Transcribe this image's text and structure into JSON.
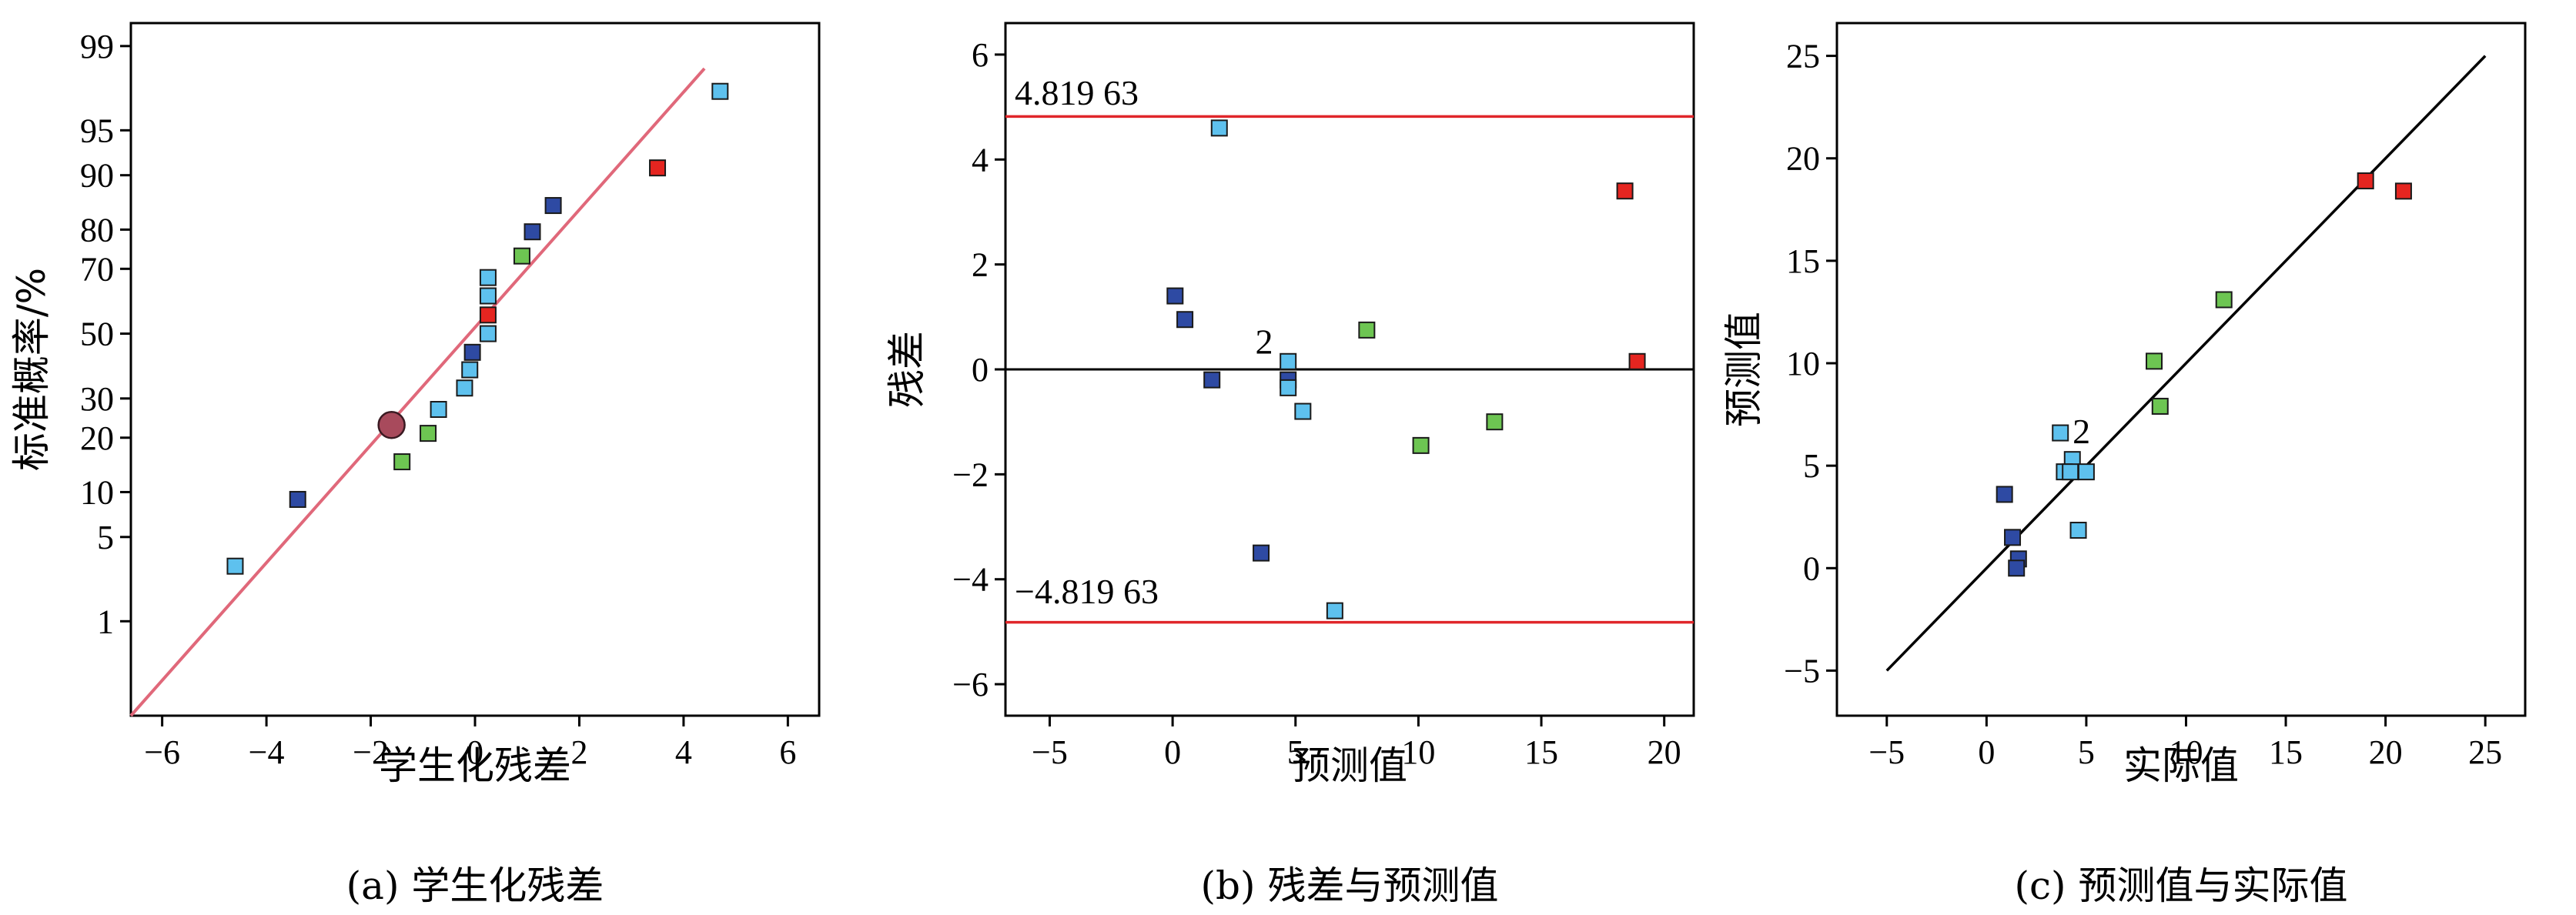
{
  "colors": {
    "dark_blue": "#2e4aa3",
    "light_blue": "#5ec1ee",
    "green": "#6dc552",
    "red": "#e52520",
    "ref_line_a": "#e0687a",
    "highlight": "#a84a5c",
    "limit_line": "#e0262a",
    "fit_line": "#000000"
  },
  "chart_data": [
    {
      "type": "scatter",
      "panel": "a",
      "caption": "(a) 学生化残差",
      "xlabel": "学生化残差",
      "ylabel": "标准概率/%",
      "xlim": [
        -6.6,
        6.6
      ],
      "xticks": [
        "−6",
        "−4",
        "−2",
        "0",
        "2",
        "4",
        "6"
      ],
      "xtick_values": [
        -6,
        -4,
        -2,
        0,
        2,
        4,
        6
      ],
      "ylim_percent": [
        0.1,
        99.4
      ],
      "y_scale": "normal probability",
      "yticks": [
        "1",
        "5",
        "10",
        "20",
        "30",
        "50",
        "70",
        "80",
        "90",
        "95",
        "99"
      ],
      "ytick_values": [
        1,
        5,
        10,
        20,
        30,
        50,
        70,
        80,
        90,
        95,
        99
      ],
      "reference_line": {
        "x": [
          -6.6,
          4.4
        ],
        "y": [
          0.1,
          98.4
        ]
      },
      "points": [
        {
          "x": -4.6,
          "y": 3.0,
          "color": "light_blue"
        },
        {
          "x": -3.4,
          "y": 9.0,
          "color": "dark_blue"
        },
        {
          "x": -1.4,
          "y": 15.0,
          "color": "green"
        },
        {
          "x": -0.9,
          "y": 21.0,
          "color": "green"
        },
        {
          "x": -0.7,
          "y": 27.0,
          "color": "light_blue"
        },
        {
          "x": -0.2,
          "y": 33.0,
          "color": "light_blue"
        },
        {
          "x": -0.1,
          "y": 38.5,
          "color": "light_blue"
        },
        {
          "x": -0.05,
          "y": 44.0,
          "color": "dark_blue"
        },
        {
          "x": 0.25,
          "y": 50.0,
          "color": "light_blue"
        },
        {
          "x": 0.25,
          "y": 56.0,
          "color": "red"
        },
        {
          "x": 0.25,
          "y": 62.0,
          "color": "light_blue"
        },
        {
          "x": 0.25,
          "y": 67.5,
          "color": "light_blue"
        },
        {
          "x": 0.9,
          "y": 73.5,
          "color": "green"
        },
        {
          "x": 1.1,
          "y": 79.5,
          "color": "dark_blue"
        },
        {
          "x": 1.5,
          "y": 85.0,
          "color": "dark_blue"
        },
        {
          "x": 3.5,
          "y": 91.0,
          "color": "red"
        },
        {
          "x": 4.7,
          "y": 97.5,
          "color": "light_blue"
        }
      ],
      "highlight_point": {
        "x": -1.6,
        "y": 23.0
      }
    },
    {
      "type": "scatter",
      "panel": "b",
      "caption": "(b) 残差与预测值",
      "xlabel": "预测值",
      "ylabel": "残差",
      "xlim": [
        -6.8,
        21.2
      ],
      "ylim": [
        -6.6,
        6.6
      ],
      "xticks": [
        "−5",
        "0",
        "5",
        "10",
        "15",
        "20"
      ],
      "xtick_values": [
        -5,
        0,
        5,
        10,
        15,
        20
      ],
      "yticks": [
        "−6",
        "−4",
        "−2",
        "0",
        "2",
        "4",
        "6"
      ],
      "ytick_values": [
        -6,
        -4,
        -2,
        0,
        2,
        4,
        6
      ],
      "limit_upper": 4.81963,
      "limit_lower": -4.81963,
      "limit_upper_label": "4.819 63",
      "limit_lower_label": "−4.819 63",
      "zero_line": 0,
      "annotation_label": "2",
      "annotation_at": {
        "x": 3.8,
        "y": 0.3
      },
      "points": [
        {
          "x": 1.9,
          "y": 4.6,
          "color": "light_blue"
        },
        {
          "x": 0.1,
          "y": 1.4,
          "color": "dark_blue"
        },
        {
          "x": 0.5,
          "y": 0.95,
          "color": "dark_blue"
        },
        {
          "x": 1.6,
          "y": -0.2,
          "color": "dark_blue"
        },
        {
          "x": 4.7,
          "y": 0.15,
          "color": "light_blue"
        },
        {
          "x": 4.7,
          "y": -0.2,
          "color": "dark_blue"
        },
        {
          "x": 4.7,
          "y": -0.35,
          "color": "light_blue"
        },
        {
          "x": 5.3,
          "y": -0.8,
          "color": "light_blue"
        },
        {
          "x": 7.9,
          "y": 0.75,
          "color": "green"
        },
        {
          "x": 10.1,
          "y": -1.45,
          "color": "green"
        },
        {
          "x": 13.1,
          "y": -1.0,
          "color": "green"
        },
        {
          "x": 18.4,
          "y": 3.4,
          "color": "red"
        },
        {
          "x": 18.9,
          "y": 0.15,
          "color": "red"
        },
        {
          "x": 3.6,
          "y": -3.5,
          "color": "dark_blue"
        },
        {
          "x": 6.6,
          "y": -4.6,
          "color": "light_blue"
        }
      ]
    },
    {
      "type": "scatter",
      "panel": "c",
      "caption": "(c) 预测值与实际值",
      "xlabel": "实际值",
      "ylabel": "预测值",
      "xlim": [
        -7.5,
        27.0
      ],
      "ylim": [
        -7.2,
        26.6
      ],
      "xticks": [
        "−5",
        "0",
        "5",
        "10",
        "15",
        "20",
        "25"
      ],
      "xtick_values": [
        -5,
        0,
        5,
        10,
        15,
        20,
        25
      ],
      "yticks": [
        "−5",
        "0",
        "5",
        "10",
        "15",
        "20",
        "25"
      ],
      "ytick_values": [
        -5,
        0,
        5,
        10,
        15,
        20,
        25
      ],
      "fit_line": {
        "x": [
          -5,
          25
        ],
        "y": [
          -5,
          25
        ]
      },
      "annotation_label": "2",
      "annotation_at": {
        "x": 4.7,
        "y": 6.1
      },
      "points": [
        {
          "x": 0.9,
          "y": 3.6,
          "color": "dark_blue"
        },
        {
          "x": 1.3,
          "y": 1.5,
          "color": "dark_blue"
        },
        {
          "x": 1.6,
          "y": 0.45,
          "color": "dark_blue"
        },
        {
          "x": 1.5,
          "y": 0.0,
          "color": "dark_blue"
        },
        {
          "x": 3.7,
          "y": 6.6,
          "color": "light_blue"
        },
        {
          "x": 4.3,
          "y": 5.3,
          "color": "light_blue"
        },
        {
          "x": 3.9,
          "y": 4.7,
          "color": "light_blue"
        },
        {
          "x": 4.2,
          "y": 4.7,
          "color": "light_blue"
        },
        {
          "x": 5.0,
          "y": 4.7,
          "color": "light_blue"
        },
        {
          "x": 4.6,
          "y": 1.85,
          "color": "light_blue"
        },
        {
          "x": 8.4,
          "y": 10.1,
          "color": "green"
        },
        {
          "x": 8.7,
          "y": 7.9,
          "color": "green"
        },
        {
          "x": 11.9,
          "y": 13.1,
          "color": "green"
        },
        {
          "x": 19.0,
          "y": 18.9,
          "color": "red"
        },
        {
          "x": 20.9,
          "y": 18.4,
          "color": "red"
        }
      ]
    }
  ]
}
